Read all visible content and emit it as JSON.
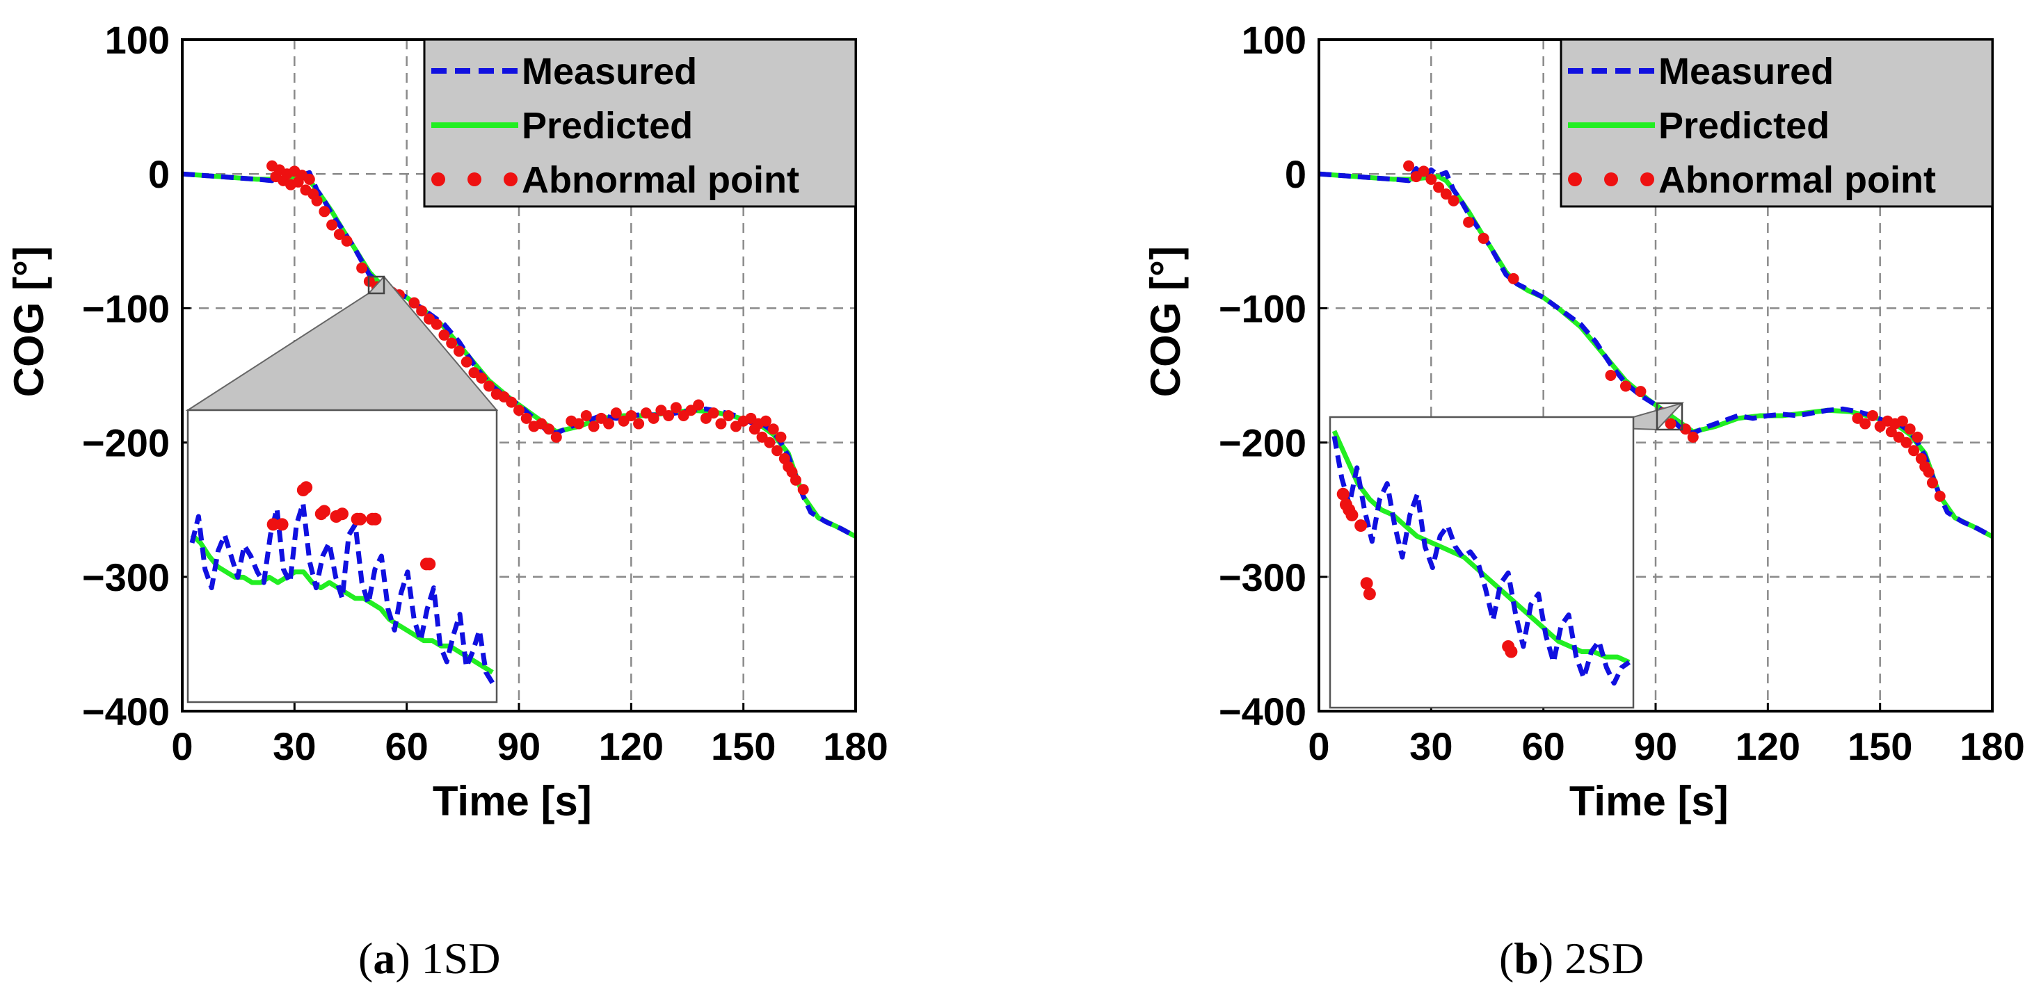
{
  "chart_data": [
    {
      "id": "a",
      "type": "line",
      "caption_letter": "a",
      "caption_text": "1SD",
      "xlabel": "Time [s]",
      "ylabel": "COG [°]",
      "xlim": [
        0,
        180
      ],
      "ylim": [
        -400,
        100
      ],
      "x_ticks": [
        0,
        30,
        60,
        90,
        120,
        150,
        180
      ],
      "y_ticks": [
        100,
        0,
        -100,
        -200,
        -300,
        -400
      ],
      "y_tick_labels": [
        "100",
        "0",
        "−100",
        "−200",
        "−300",
        "−400"
      ],
      "grid": true,
      "legend": {
        "placement": "top-right",
        "background": "#c8c8c8",
        "entries": [
          {
            "label": "Measured",
            "style": "dashed",
            "color": "#1010e0"
          },
          {
            "label": "Predicted",
            "style": "solid",
            "color": "#22ee22"
          },
          {
            "label": "Abnormal point",
            "style": "dotted",
            "color": "#ee1111"
          }
        ]
      },
      "series": [
        {
          "name": "Measured",
          "color": "#1010e0",
          "x": [
            0,
            10,
            20,
            24,
            26,
            28,
            30,
            32,
            34,
            36,
            38,
            40,
            43,
            46,
            48,
            50,
            53,
            56,
            60,
            63,
            66,
            70,
            74,
            78,
            82,
            86,
            90,
            94,
            97,
            100,
            104,
            108,
            112,
            116,
            120,
            124,
            128,
            132,
            136,
            140,
            144,
            148,
            152,
            155,
            158,
            160,
            162,
            164,
            166,
            168,
            172,
            176,
            180
          ],
          "y": [
            0,
            -2,
            -4,
            -5,
            4,
            -2,
            3,
            -1,
            1,
            -12,
            -20,
            -30,
            -42,
            -55,
            -65,
            -75,
            -82,
            -86,
            -92,
            -98,
            -104,
            -112,
            -125,
            -142,
            -156,
            -165,
            -172,
            -182,
            -190,
            -193,
            -188,
            -184,
            -180,
            -182,
            -180,
            -179,
            -180,
            -178,
            -176,
            -175,
            -177,
            -180,
            -185,
            -186,
            -192,
            -200,
            -210,
            -225,
            -240,
            -252,
            -259,
            -264,
            -270
          ]
        },
        {
          "name": "Predicted",
          "color": "#22ee22",
          "x": [
            0,
            10,
            20,
            24,
            28,
            30,
            32,
            34,
            36,
            40,
            43,
            46,
            50,
            53,
            56,
            60,
            64,
            70,
            76,
            82,
            88,
            94,
            100,
            106,
            112,
            118,
            124,
            130,
            136,
            142,
            148,
            154,
            158,
            162,
            166,
            170,
            176,
            180
          ],
          "y": [
            0,
            -2,
            -4,
            -4,
            -3,
            -2,
            -2,
            -5,
            -12,
            -28,
            -42,
            -55,
            -73,
            -82,
            -87,
            -92,
            -100,
            -114,
            -134,
            -154,
            -168,
            -180,
            -192,
            -188,
            -182,
            -180,
            -180,
            -178,
            -176,
            -177,
            -181,
            -186,
            -194,
            -208,
            -240,
            -256,
            -264,
            -270
          ]
        }
      ],
      "abnormal_points": {
        "x": [
          24,
          25,
          26,
          27,
          28,
          29,
          30,
          31,
          32,
          33,
          34,
          35,
          36,
          38,
          40,
          42,
          44,
          48,
          50,
          52,
          54,
          56,
          58,
          62,
          64,
          66,
          68,
          70,
          72,
          74,
          76,
          78,
          80,
          82,
          84,
          86,
          88,
          90,
          92,
          94,
          96,
          98,
          100,
          104,
          106,
          108,
          110,
          112,
          114,
          116,
          118,
          120,
          122,
          124,
          126,
          128,
          130,
          132,
          134,
          136,
          138,
          140,
          142,
          144,
          146,
          148,
          150,
          152,
          153,
          154,
          155,
          156,
          157,
          158,
          159,
          160,
          161,
          162,
          163,
          164,
          166
        ],
        "y": [
          6,
          -2,
          3,
          -5,
          0,
          -8,
          2,
          -6,
          -1,
          -12,
          -4,
          -15,
          -20,
          -28,
          -38,
          -45,
          -50,
          -70,
          -80,
          -84,
          -86,
          -88,
          -90,
          -96,
          -102,
          -108,
          -112,
          -120,
          -126,
          -132,
          -140,
          -148,
          -152,
          -158,
          -164,
          -166,
          -170,
          -176,
          -182,
          -188,
          -186,
          -190,
          -196,
          -184,
          -186,
          -180,
          -188,
          -182,
          -186,
          -178,
          -184,
          -180,
          -186,
          -178,
          -182,
          -176,
          -180,
          -174,
          -180,
          -176,
          -172,
          -182,
          -178,
          -186,
          -180,
          -188,
          -184,
          -182,
          -190,
          -186,
          -196,
          -184,
          -200,
          -190,
          -206,
          -196,
          -212,
          -218,
          -222,
          -228,
          -235
        ]
      },
      "inset": {
        "source_range": {
          "x": [
            48,
            54
          ],
          "y": [
            -93,
            -78
          ]
        },
        "measured_y": [
          0.45,
          0.35,
          0.55,
          0.62,
          0.48,
          0.42,
          0.5,
          0.58,
          0.46,
          0.5,
          0.56,
          0.6,
          0.42,
          0.32,
          0.55,
          0.6,
          0.38,
          0.3,
          0.52,
          0.62,
          0.5,
          0.45,
          0.58,
          0.66,
          0.42,
          0.38,
          0.6,
          0.68,
          0.55,
          0.5,
          0.7,
          0.78,
          0.64,
          0.56,
          0.74,
          0.82,
          0.7,
          0.62,
          0.84,
          0.9,
          0.8,
          0.72,
          0.92,
          0.86,
          0.78,
          0.94,
          0.98
        ],
        "predicted_y": [
          0.42,
          0.45,
          0.5,
          0.54,
          0.56,
          0.58,
          0.58,
          0.6,
          0.6,
          0.58,
          0.6,
          0.58,
          0.56,
          0.56,
          0.6,
          0.62,
          0.6,
          0.62,
          0.64,
          0.66,
          0.66,
          0.68,
          0.7,
          0.74,
          0.76,
          0.78,
          0.8,
          0.82,
          0.82,
          0.84,
          0.84,
          0.86,
          0.88,
          0.9,
          0.92,
          0.94
        ],
        "abnormal": [
          [
            0.27,
            0.38
          ],
          [
            0.3,
            0.38
          ],
          [
            0.37,
            0.25
          ],
          [
            0.38,
            0.24
          ],
          [
            0.43,
            0.34
          ],
          [
            0.44,
            0.33
          ],
          [
            0.48,
            0.35
          ],
          [
            0.5,
            0.34
          ],
          [
            0.55,
            0.36
          ],
          [
            0.56,
            0.36
          ],
          [
            0.6,
            0.36
          ],
          [
            0.61,
            0.36
          ],
          [
            0.78,
            0.53
          ],
          [
            0.79,
            0.53
          ]
        ]
      }
    },
    {
      "id": "b",
      "type": "line",
      "caption_letter": "b",
      "caption_text": "2SD",
      "xlabel": "Time [s]",
      "ylabel": "COG [°]",
      "xlim": [
        0,
        180
      ],
      "ylim": [
        -400,
        100
      ],
      "x_ticks": [
        0,
        30,
        60,
        90,
        120,
        150,
        180
      ],
      "y_ticks": [
        100,
        0,
        -100,
        -200,
        -300,
        -400
      ],
      "y_tick_labels": [
        "100",
        "0",
        "−100",
        "−200",
        "−300",
        "−400"
      ],
      "grid": true,
      "legend": {
        "placement": "top-right",
        "background": "#c8c8c8",
        "entries": [
          {
            "label": "Measured",
            "style": "dashed",
            "color": "#1010e0"
          },
          {
            "label": "Predicted",
            "style": "solid",
            "color": "#22ee22"
          },
          {
            "label": "Abnormal point",
            "style": "dotted",
            "color": "#ee1111"
          }
        ]
      },
      "series": [
        {
          "name": "Measured",
          "color": "#1010e0",
          "x": [
            0,
            10,
            20,
            24,
            26,
            28,
            30,
            32,
            34,
            36,
            38,
            40,
            43,
            46,
            48,
            50,
            53,
            56,
            60,
            63,
            66,
            70,
            74,
            78,
            82,
            86,
            90,
            94,
            97,
            100,
            104,
            108,
            112,
            116,
            120,
            124,
            128,
            132,
            136,
            140,
            144,
            148,
            152,
            155,
            158,
            160,
            162,
            164,
            166,
            168,
            172,
            176,
            180
          ],
          "y": [
            0,
            -2,
            -4,
            -5,
            4,
            -2,
            3,
            -1,
            1,
            -12,
            -20,
            -30,
            -42,
            -55,
            -65,
            -75,
            -82,
            -86,
            -92,
            -98,
            -104,
            -112,
            -125,
            -142,
            -156,
            -165,
            -172,
            -182,
            -190,
            -193,
            -188,
            -184,
            -180,
            -182,
            -180,
            -179,
            -180,
            -178,
            -176,
            -175,
            -177,
            -180,
            -185,
            -186,
            -192,
            -200,
            -210,
            -225,
            -240,
            -252,
            -259,
            -264,
            -270
          ]
        },
        {
          "name": "Predicted",
          "color": "#22ee22",
          "x": [
            0,
            10,
            20,
            24,
            28,
            30,
            32,
            34,
            36,
            40,
            43,
            46,
            50,
            53,
            56,
            60,
            64,
            70,
            76,
            82,
            88,
            94,
            100,
            106,
            112,
            118,
            124,
            130,
            136,
            142,
            148,
            154,
            158,
            162,
            166,
            170,
            176,
            180
          ],
          "y": [
            0,
            -2,
            -4,
            -4,
            -3,
            -2,
            -2,
            -5,
            -12,
            -28,
            -42,
            -55,
            -73,
            -82,
            -87,
            -92,
            -100,
            -114,
            -134,
            -154,
            -168,
            -180,
            -192,
            -188,
            -182,
            -180,
            -180,
            -178,
            -176,
            -177,
            -181,
            -186,
            -194,
            -208,
            -240,
            -256,
            -264,
            -270
          ]
        }
      ],
      "abnormal_points": {
        "x": [
          24,
          26,
          28,
          30,
          32,
          34,
          36,
          40,
          44,
          52,
          78,
          82,
          86,
          92,
          94,
          98,
          100,
          144,
          146,
          148,
          150,
          152,
          153,
          154,
          155,
          156,
          157,
          158,
          159,
          160,
          161,
          162,
          163,
          164,
          166
        ],
        "y": [
          6,
          -2,
          2,
          -4,
          -10,
          -15,
          -20,
          -36,
          -48,
          -78,
          -150,
          -158,
          -162,
          -178,
          -186,
          -190,
          -196,
          -182,
          -186,
          -180,
          -188,
          -184,
          -192,
          -186,
          -196,
          -184,
          -200,
          -190,
          -206,
          -196,
          -212,
          -218,
          -222,
          -230,
          -240
        ]
      },
      "inset": {
        "source_range": {
          "x": [
            90,
            96
          ],
          "y": [
            -186,
            -172
          ]
        },
        "measured_y": [
          0.02,
          0.18,
          0.28,
          0.14,
          0.3,
          0.42,
          0.26,
          0.2,
          0.36,
          0.48,
          0.32,
          0.24,
          0.44,
          0.52,
          0.4,
          0.36,
          0.44,
          0.48,
          0.46,
          0.5,
          0.6,
          0.72,
          0.58,
          0.54,
          0.7,
          0.82,
          0.66,
          0.62,
          0.78,
          0.88,
          0.74,
          0.7,
          0.86,
          0.94,
          0.84,
          0.8,
          0.9,
          0.96,
          0.9,
          0.88
        ],
        "predicted_y": [
          0.0,
          0.1,
          0.2,
          0.26,
          0.3,
          0.32,
          0.36,
          0.4,
          0.42,
          0.44,
          0.46,
          0.48,
          0.52,
          0.56,
          0.6,
          0.64,
          0.68,
          0.72,
          0.76,
          0.8,
          0.82,
          0.84,
          0.84,
          0.86,
          0.86,
          0.88
        ],
        "abnormal": [
          [
            0.03,
            0.24
          ],
          [
            0.04,
            0.28
          ],
          [
            0.05,
            0.3
          ],
          [
            0.06,
            0.32
          ],
          [
            0.09,
            0.36
          ],
          [
            0.11,
            0.58
          ],
          [
            0.12,
            0.62
          ],
          [
            0.59,
            0.82
          ],
          [
            0.6,
            0.84
          ]
        ]
      }
    }
  ]
}
